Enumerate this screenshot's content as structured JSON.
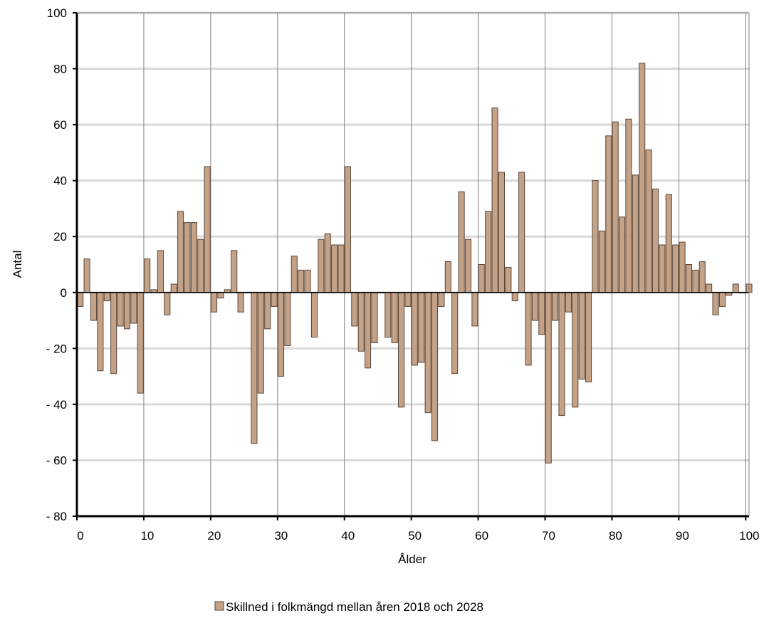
{
  "chart_data": {
    "type": "bar",
    "xlabel": "Ålder",
    "ylabel": "Antal",
    "ylim": [
      -80,
      100
    ],
    "xlim": [
      0,
      100
    ],
    "y_ticks": [
      "100",
      "80",
      "60",
      "40",
      "20",
      "0",
      "- 20",
      "- 40",
      "- 60",
      "- 80"
    ],
    "x_ticks": [
      "0",
      "10",
      "20",
      "30",
      "40",
      "50",
      "60",
      "70",
      "80",
      "90",
      "100"
    ],
    "grid": true,
    "legend_position": "bottom-center",
    "bar_color": "#c4a287",
    "bar_edge_color": "#5a4638",
    "series": [
      {
        "name": "Skillned i folkmängd mellan åren 2018 och 2028",
        "x": [
          0,
          1,
          2,
          3,
          4,
          5,
          6,
          7,
          8,
          9,
          10,
          11,
          12,
          13,
          14,
          15,
          16,
          17,
          18,
          19,
          20,
          21,
          22,
          23,
          24,
          25,
          26,
          27,
          28,
          29,
          30,
          31,
          32,
          33,
          34,
          35,
          36,
          37,
          38,
          39,
          40,
          41,
          42,
          43,
          44,
          45,
          46,
          47,
          48,
          49,
          50,
          51,
          52,
          53,
          54,
          55,
          56,
          57,
          58,
          59,
          60,
          61,
          62,
          63,
          64,
          65,
          66,
          67,
          68,
          69,
          70,
          71,
          72,
          73,
          74,
          75,
          76,
          77,
          78,
          79,
          80,
          81,
          82,
          83,
          84,
          85,
          86,
          87,
          88,
          89,
          90,
          91,
          92,
          93,
          94,
          95,
          96,
          97,
          98,
          99,
          100
        ],
        "values": [
          -5,
          12,
          -10,
          -28,
          -3,
          -29,
          -12,
          -13,
          -11,
          -36,
          12,
          1,
          15,
          -8,
          3,
          29,
          25,
          25,
          19,
          45,
          -7,
          -2,
          1,
          15,
          -7,
          0,
          -54,
          -36,
          -13,
          -5,
          -30,
          -19,
          13,
          8,
          8,
          -16,
          19,
          21,
          17,
          17,
          45,
          -12,
          -21,
          -27,
          -18,
          0,
          -16,
          -18,
          -41,
          -5,
          -26,
          -25,
          -43,
          -53,
          -5,
          11,
          -29,
          36,
          19,
          -12,
          10,
          29,
          66,
          43,
          9,
          -3,
          43,
          -26,
          -10,
          -15,
          -61,
          -10,
          -44,
          -7,
          -41,
          -31,
          -32,
          40,
          22,
          56,
          61,
          27,
          62,
          42,
          82,
          51,
          37,
          17,
          35,
          17,
          18,
          10,
          8,
          11,
          3,
          -8,
          -5,
          -1,
          3,
          0,
          3
        ]
      }
    ]
  }
}
